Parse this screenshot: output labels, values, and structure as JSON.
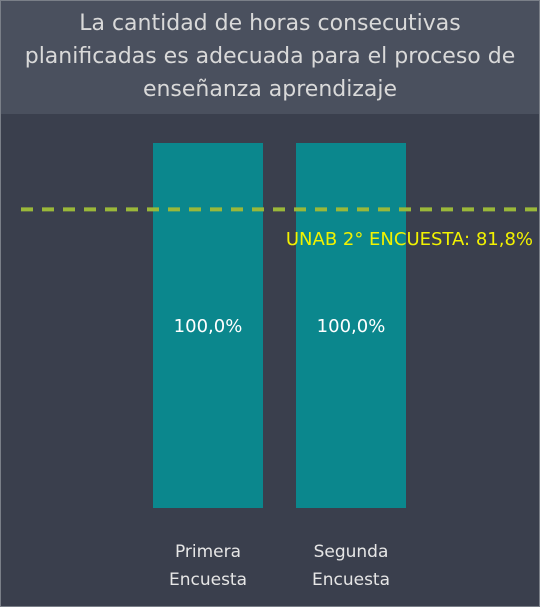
{
  "chart_data": {
    "type": "bar",
    "title": "La cantidad de horas consecutivas planificadas es adecuada para el proceso de enseñanza aprendizaje",
    "categories": [
      "Primera Encuesta",
      "Segunda Encuesta"
    ],
    "values": [
      100,
      100
    ],
    "value_labels": [
      "100,0%",
      "100,0%"
    ],
    "color": "#0b878d",
    "ylim": [
      0,
      100
    ],
    "reference_line": {
      "value": 81.8,
      "label": "UNAB 2° ENCUESTA: 81,8%",
      "color": "#9ab83a",
      "label_color": "#f2f200"
    }
  }
}
